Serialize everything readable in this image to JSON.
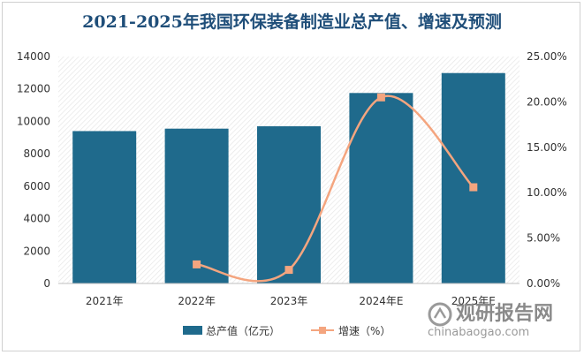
{
  "title": "2021-2025年我国环保装备制造业总产值、增速及预测",
  "chart_data": {
    "type": "bar",
    "categories": [
      "2021年",
      "2022年",
      "2023年",
      "2024年E",
      "2025年E"
    ],
    "series": [
      {
        "name": "总产值（亿元）",
        "type": "bar",
        "axis": "left",
        "color": "#1f6a8c",
        "values": [
          9400,
          9550,
          9700,
          11750,
          12980
        ]
      },
      {
        "name": "增速（%）",
        "type": "line",
        "axis": "right",
        "color": "#f4a57f",
        "values": [
          null,
          2.1,
          1.5,
          20.5,
          10.6
        ]
      }
    ],
    "y_left": {
      "min": 0,
      "max": 14000,
      "ticks": [
        "0",
        "2000",
        "4000",
        "6000",
        "8000",
        "10000",
        "12000",
        "14000"
      ]
    },
    "y_right": {
      "min": 0,
      "max": 25,
      "ticks": [
        "0.00%",
        "5.00%",
        "10.00%",
        "15.00%",
        "20.00%",
        "25.00%"
      ]
    },
    "legend_position": "bottom"
  },
  "watermark": {
    "cn": "观研报告网",
    "en": "chinabaogao.com"
  }
}
